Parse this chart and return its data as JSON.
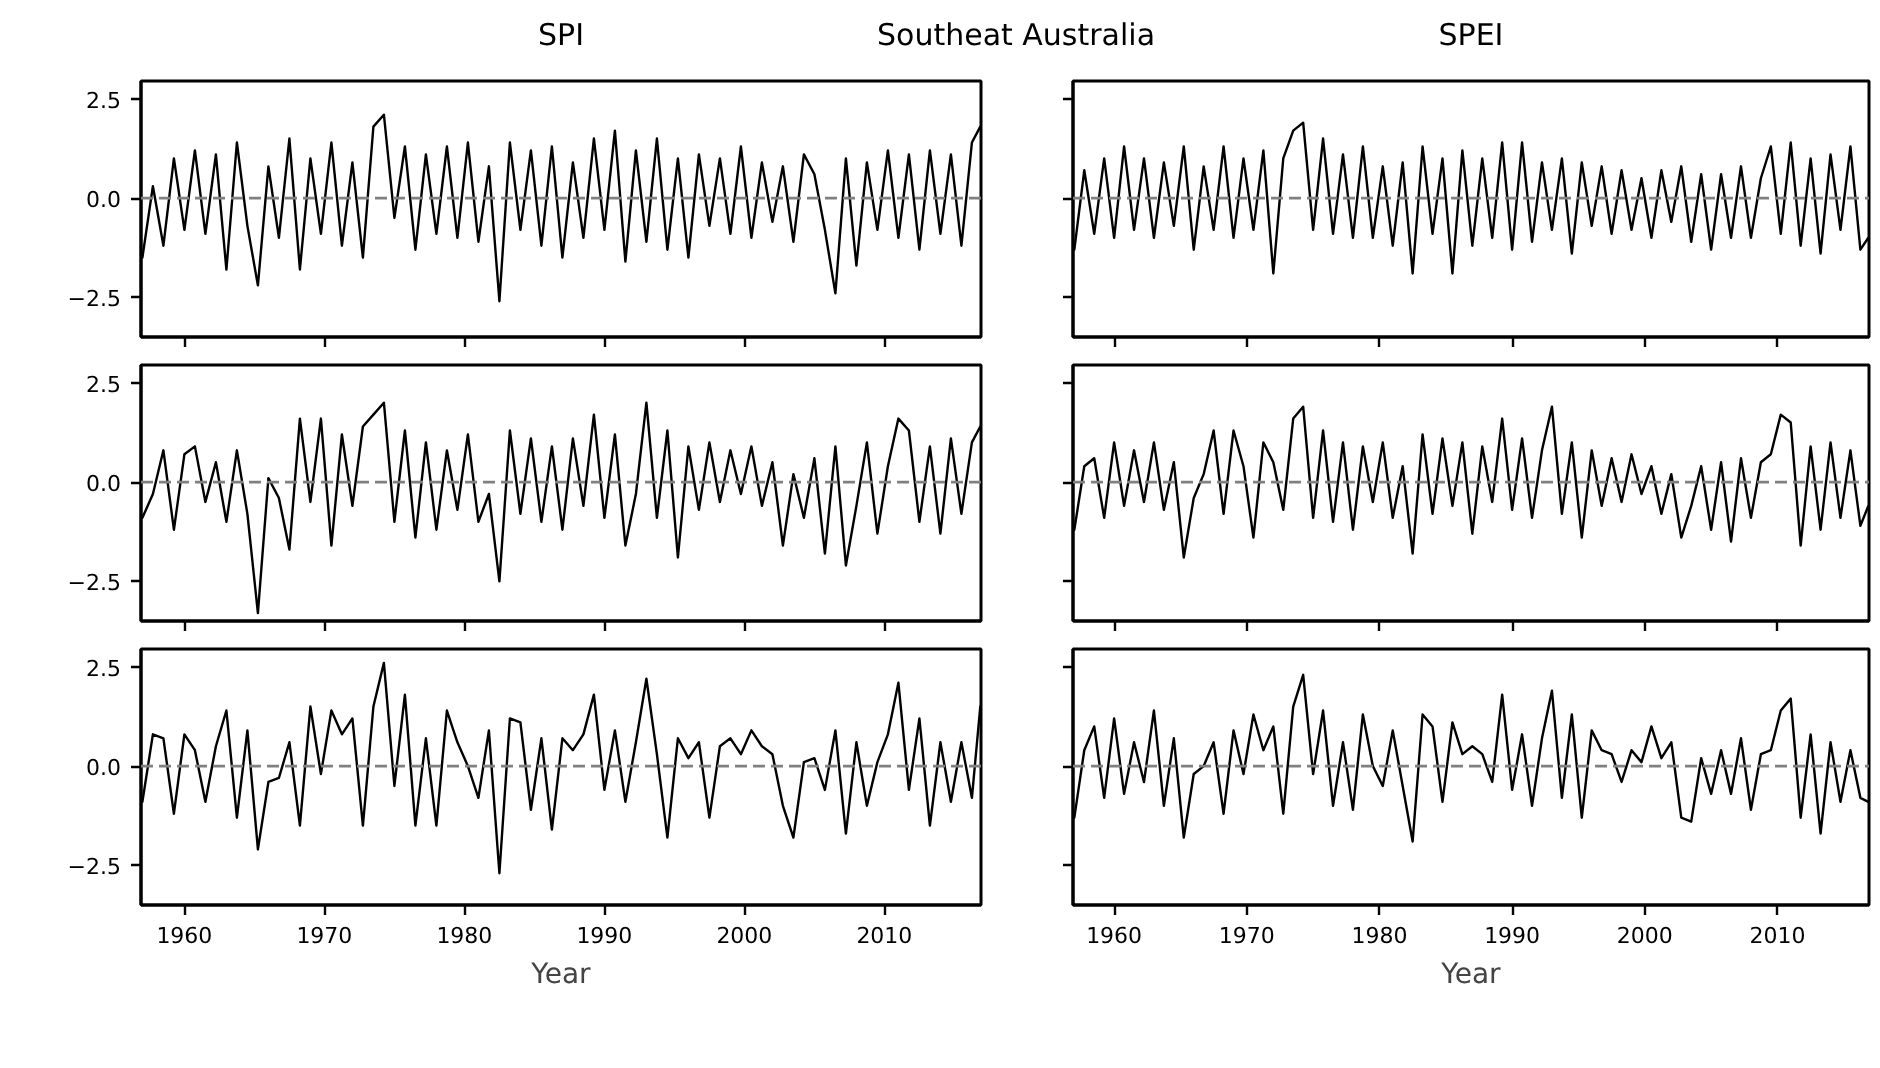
{
  "chart_data": [
    {
      "type": "line",
      "title": "SPI",
      "annotations": [
        "Southeat Australia"
      ],
      "tick_labels": "y",
      "xlim": [
        1956.9,
        2016.9
      ],
      "ylim": [
        -3.5,
        2.95
      ],
      "xticks": [
        1960,
        1970,
        1980,
        1990,
        2000,
        2010
      ],
      "yticks": [
        {
          "value": -2.5,
          "label": "−2.5"
        },
        {
          "value": 0,
          "label": "0.0"
        },
        {
          "value": 2.5,
          "label": "2.5"
        }
      ],
      "ref_lines": [
        {
          "axis": "y",
          "value": 0,
          "color": "#808080",
          "line_style": "dashed"
        }
      ],
      "x": [
        1957,
        1957.75,
        1958.5,
        1959.25,
        1960,
        1960.75,
        1961.5,
        1962.25,
        1963,
        1963.75,
        1964.5,
        1965.25,
        1966,
        1966.75,
        1967.5,
        1968.25,
        1969,
        1969.75,
        1970.5,
        1971.25,
        1972,
        1972.75,
        1973.5,
        1974.25,
        1975,
        1975.75,
        1976.5,
        1977.25,
        1978,
        1978.75,
        1979.5,
        1980.25,
        1981,
        1981.75,
        1982.5,
        1983.25,
        1984,
        1984.75,
        1985.5,
        1986.25,
        1987,
        1987.75,
        1988.5,
        1989.25,
        1990,
        1990.75,
        1991.5,
        1992.25,
        1993,
        1993.75,
        1994.5,
        1995.25,
        1996,
        1996.75,
        1997.5,
        1998.25,
        1999,
        1999.75,
        2000.5,
        2001.25,
        2002,
        2002.75,
        2003.5,
        2004.25,
        2005,
        2005.75,
        2006.5,
        2007.25,
        2008,
        2008.75,
        2009.5,
        2010.25,
        2011,
        2011.75,
        2012.5,
        2013.25,
        2014,
        2014.75,
        2015.5,
        2016.25,
        2016.85
      ],
      "series": [
        {
          "color": "#000000",
          "values": [
            -1.5,
            0.3,
            -1.2,
            1.0,
            -0.8,
            1.2,
            -0.9,
            1.1,
            -1.8,
            1.4,
            -0.7,
            -2.2,
            0.8,
            -1.0,
            1.5,
            -1.8,
            1.0,
            -0.9,
            1.4,
            -1.2,
            0.9,
            -1.5,
            1.8,
            2.1,
            -0.5,
            1.3,
            -1.3,
            1.1,
            -0.9,
            1.3,
            -1.0,
            1.4,
            -1.1,
            0.8,
            -2.6,
            1.4,
            -0.8,
            1.2,
            -1.2,
            1.3,
            -1.5,
            0.9,
            -1.0,
            1.5,
            -0.8,
            1.7,
            -1.6,
            1.2,
            -1.1,
            1.5,
            -1.3,
            1.0,
            -1.5,
            1.1,
            -0.7,
            1.0,
            -0.9,
            1.3,
            -1.0,
            0.9,
            -0.6,
            0.8,
            -1.1,
            1.1,
            0.6,
            -0.8,
            -2.4,
            1.0,
            -1.7,
            0.9,
            -0.8,
            1.2,
            -1.0,
            1.1,
            -1.3,
            1.2,
            -0.9,
            1.1,
            -1.2,
            1.4,
            1.8
          ]
        }
      ]
    },
    {
      "type": "line",
      "title": "SPEI",
      "tick_labels": false,
      "xlim": [
        1956.9,
        2016.9
      ],
      "ylim": [
        -3.5,
        2.95
      ],
      "xticks": [
        1960,
        1970,
        1980,
        1990,
        2000,
        2010
      ],
      "yticks": [
        {
          "value": -2.5,
          "label": null
        },
        {
          "value": 0,
          "label": null
        },
        {
          "value": 2.5,
          "label": null
        }
      ],
      "ref_lines": [
        {
          "axis": "y",
          "value": 0,
          "color": "#808080",
          "line_style": "dashed"
        }
      ],
      "x": [
        1957,
        1957.75,
        1958.5,
        1959.25,
        1960,
        1960.75,
        1961.5,
        1962.25,
        1963,
        1963.75,
        1964.5,
        1965.25,
        1966,
        1966.75,
        1967.5,
        1968.25,
        1969,
        1969.75,
        1970.5,
        1971.25,
        1972,
        1972.75,
        1973.5,
        1974.25,
        1975,
        1975.75,
        1976.5,
        1977.25,
        1978,
        1978.75,
        1979.5,
        1980.25,
        1981,
        1981.75,
        1982.5,
        1983.25,
        1984,
        1984.75,
        1985.5,
        1986.25,
        1987,
        1987.75,
        1988.5,
        1989.25,
        1990,
        1990.75,
        1991.5,
        1992.25,
        1993,
        1993.75,
        1994.5,
        1995.25,
        1996,
        1996.75,
        1997.5,
        1998.25,
        1999,
        1999.75,
        2000.5,
        2001.25,
        2002,
        2002.75,
        2003.5,
        2004.25,
        2005,
        2005.75,
        2006.5,
        2007.25,
        2008,
        2008.75,
        2009.5,
        2010.25,
        2011,
        2011.75,
        2012.5,
        2013.25,
        2014,
        2014.75,
        2015.5,
        2016.25,
        2016.85
      ],
      "series": [
        {
          "color": "#000000",
          "values": [
            -1.3,
            0.7,
            -0.9,
            1.0,
            -1.0,
            1.3,
            -0.8,
            1.0,
            -1.0,
            0.9,
            -0.7,
            1.3,
            -1.3,
            0.8,
            -0.8,
            1.3,
            -1.0,
            1.0,
            -0.8,
            1.2,
            -1.9,
            1.0,
            1.7,
            1.9,
            -0.8,
            1.5,
            -0.9,
            1.1,
            -1.0,
            1.3,
            -1.0,
            0.8,
            -1.2,
            0.9,
            -1.9,
            1.3,
            -0.9,
            1.0,
            -1.9,
            1.2,
            -1.2,
            1.0,
            -1.0,
            1.4,
            -1.3,
            1.4,
            -1.1,
            0.9,
            -0.8,
            1.0,
            -1.4,
            0.9,
            -0.7,
            0.8,
            -0.9,
            0.7,
            -0.8,
            0.5,
            -1.0,
            0.7,
            -0.6,
            0.8,
            -1.1,
            0.6,
            -1.3,
            0.6,
            -1.0,
            0.8,
            -1.0,
            0.5,
            1.3,
            -0.9,
            1.4,
            -1.2,
            1.0,
            -1.4,
            1.1,
            -0.8,
            1.3,
            -1.3,
            -1.0
          ]
        }
      ]
    },
    {
      "type": "line",
      "tick_labels": "y",
      "xlim": [
        1956.9,
        2016.9
      ],
      "ylim": [
        -3.5,
        2.95
      ],
      "xticks": [
        1960,
        1970,
        1980,
        1990,
        2000,
        2010
      ],
      "yticks": [
        {
          "value": -2.5,
          "label": "−2.5"
        },
        {
          "value": 0,
          "label": "0.0"
        },
        {
          "value": 2.5,
          "label": "2.5"
        }
      ],
      "ref_lines": [
        {
          "axis": "y",
          "value": 0,
          "color": "#808080",
          "line_style": "dashed"
        }
      ],
      "x": [
        1957,
        1957.75,
        1958.5,
        1959.25,
        1960,
        1960.75,
        1961.5,
        1962.25,
        1963,
        1963.75,
        1964.5,
        1965.25,
        1966,
        1966.75,
        1967.5,
        1968.25,
        1969,
        1969.75,
        1970.5,
        1971.25,
        1972,
        1972.75,
        1973.5,
        1974.25,
        1975,
        1975.75,
        1976.5,
        1977.25,
        1978,
        1978.75,
        1979.5,
        1980.25,
        1981,
        1981.75,
        1982.5,
        1983.25,
        1984,
        1984.75,
        1985.5,
        1986.25,
        1987,
        1987.75,
        1988.5,
        1989.25,
        1990,
        1990.75,
        1991.5,
        1992.25,
        1993,
        1993.75,
        1994.5,
        1995.25,
        1996,
        1996.75,
        1997.5,
        1998.25,
        1999,
        1999.75,
        2000.5,
        2001.25,
        2002,
        2002.75,
        2003.5,
        2004.25,
        2005,
        2005.75,
        2006.5,
        2007.25,
        2008,
        2008.75,
        2009.5,
        2010.25,
        2011,
        2011.75,
        2012.5,
        2013.25,
        2014,
        2014.75,
        2015.5,
        2016.25,
        2016.85
      ],
      "series": [
        {
          "color": "#000000",
          "values": [
            -0.9,
            -0.3,
            0.8,
            -1.2,
            0.7,
            0.9,
            -0.5,
            0.5,
            -1.0,
            0.8,
            -0.8,
            -3.3,
            0.1,
            -0.4,
            -1.7,
            1.6,
            -0.5,
            1.6,
            -1.6,
            1.2,
            -0.6,
            1.4,
            1.7,
            2.0,
            -1.0,
            1.3,
            -1.4,
            1.0,
            -1.2,
            0.8,
            -0.7,
            1.2,
            -1.0,
            -0.3,
            -2.5,
            1.3,
            -0.8,
            1.1,
            -1.0,
            0.9,
            -1.2,
            1.1,
            -0.6,
            1.7,
            -0.9,
            1.2,
            -1.6,
            -0.3,
            2.0,
            -0.9,
            1.3,
            -1.9,
            0.9,
            -0.7,
            1.0,
            -0.5,
            0.8,
            -0.3,
            0.9,
            -0.6,
            0.5,
            -1.6,
            0.2,
            -0.9,
            0.6,
            -1.8,
            0.9,
            -2.1,
            -0.6,
            1.0,
            -1.3,
            0.4,
            1.6,
            1.3,
            -1.0,
            0.9,
            -1.3,
            1.1,
            -0.8,
            1.0,
            1.4
          ]
        }
      ]
    },
    {
      "type": "line",
      "tick_labels": false,
      "xlim": [
        1956.9,
        2016.9
      ],
      "ylim": [
        -3.5,
        2.95
      ],
      "xticks": [
        1960,
        1970,
        1980,
        1990,
        2000,
        2010
      ],
      "yticks": [
        {
          "value": -2.5,
          "label": null
        },
        {
          "value": 0,
          "label": null
        },
        {
          "value": 2.5,
          "label": null
        }
      ],
      "ref_lines": [
        {
          "axis": "y",
          "value": 0,
          "color": "#808080",
          "line_style": "dashed"
        }
      ],
      "x": [
        1957,
        1957.75,
        1958.5,
        1959.25,
        1960,
        1960.75,
        1961.5,
        1962.25,
        1963,
        1963.75,
        1964.5,
        1965.25,
        1966,
        1966.75,
        1967.5,
        1968.25,
        1969,
        1969.75,
        1970.5,
        1971.25,
        1972,
        1972.75,
        1973.5,
        1974.25,
        1975,
        1975.75,
        1976.5,
        1977.25,
        1978,
        1978.75,
        1979.5,
        1980.25,
        1981,
        1981.75,
        1982.5,
        1983.25,
        1984,
        1984.75,
        1985.5,
        1986.25,
        1987,
        1987.75,
        1988.5,
        1989.25,
        1990,
        1990.75,
        1991.5,
        1992.25,
        1993,
        1993.75,
        1994.5,
        1995.25,
        1996,
        1996.75,
        1997.5,
        1998.25,
        1999,
        1999.75,
        2000.5,
        2001.25,
        2002,
        2002.75,
        2003.5,
        2004.25,
        2005,
        2005.75,
        2006.5,
        2007.25,
        2008,
        2008.75,
        2009.5,
        2010.25,
        2011,
        2011.75,
        2012.5,
        2013.25,
        2014,
        2014.75,
        2015.5,
        2016.25,
        2016.85
      ],
      "series": [
        {
          "color": "#000000",
          "values": [
            -1.2,
            0.4,
            0.6,
            -0.9,
            1.0,
            -0.6,
            0.8,
            -0.5,
            1.0,
            -0.7,
            0.5,
            -1.9,
            -0.4,
            0.2,
            1.3,
            -0.8,
            1.3,
            0.4,
            -1.4,
            1.0,
            0.5,
            -0.7,
            1.6,
            1.9,
            -0.9,
            1.3,
            -1.0,
            1.0,
            -1.2,
            0.9,
            -0.5,
            1.0,
            -0.9,
            0.4,
            -1.8,
            1.2,
            -0.8,
            1.1,
            -0.6,
            1.0,
            -1.3,
            0.9,
            -0.5,
            1.6,
            -0.7,
            1.1,
            -0.9,
            0.8,
            1.9,
            -0.8,
            1.0,
            -1.4,
            0.8,
            -0.6,
            0.6,
            -0.5,
            0.7,
            -0.3,
            0.4,
            -0.8,
            0.2,
            -1.4,
            -0.6,
            0.4,
            -1.2,
            0.5,
            -1.5,
            0.6,
            -0.9,
            0.5,
            0.7,
            1.7,
            1.5,
            -1.6,
            0.9,
            -1.2,
            1.0,
            -0.9,
            0.8,
            -1.1,
            -0.6
          ]
        }
      ]
    },
    {
      "type": "line",
      "xlabel": "Year",
      "xlim": [
        1956.9,
        2016.9
      ],
      "ylim": [
        -3.5,
        2.95
      ],
      "xticks": [
        1960,
        1970,
        1980,
        1990,
        2000,
        2010
      ],
      "yticks": [
        {
          "value": -2.5,
          "label": "−2.5"
        },
        {
          "value": 0,
          "label": "0.0"
        },
        {
          "value": 2.5,
          "label": "2.5"
        }
      ],
      "ref_lines": [
        {
          "axis": "y",
          "value": 0,
          "color": "#808080",
          "line_style": "dashed"
        }
      ],
      "x": [
        1957,
        1957.75,
        1958.5,
        1959.25,
        1960,
        1960.75,
        1961.5,
        1962.25,
        1963,
        1963.75,
        1964.5,
        1965.25,
        1966,
        1966.75,
        1967.5,
        1968.25,
        1969,
        1969.75,
        1970.5,
        1971.25,
        1972,
        1972.75,
        1973.5,
        1974.25,
        1975,
        1975.75,
        1976.5,
        1977.25,
        1978,
        1978.75,
        1979.5,
        1980.25,
        1981,
        1981.75,
        1982.5,
        1983.25,
        1984,
        1984.75,
        1985.5,
        1986.25,
        1987,
        1987.75,
        1988.5,
        1989.25,
        1990,
        1990.75,
        1991.5,
        1992.25,
        1993,
        1993.75,
        1994.5,
        1995.25,
        1996,
        1996.75,
        1997.5,
        1998.25,
        1999,
        1999.75,
        2000.5,
        2001.25,
        2002,
        2002.75,
        2003.5,
        2004.25,
        2005,
        2005.75,
        2006.5,
        2007.25,
        2008,
        2008.75,
        2009.5,
        2010.25,
        2011,
        2011.75,
        2012.5,
        2013.25,
        2014,
        2014.75,
        2015.5,
        2016.25,
        2016.85
      ],
      "series": [
        {
          "color": "#000000",
          "values": [
            -0.9,
            0.8,
            0.7,
            -1.2,
            0.8,
            0.4,
            -0.9,
            0.5,
            1.4,
            -1.3,
            0.9,
            -2.1,
            -0.4,
            -0.3,
            0.6,
            -1.5,
            1.5,
            -0.2,
            1.4,
            0.8,
            1.2,
            -1.5,
            1.5,
            2.6,
            -0.5,
            1.8,
            -1.5,
            0.7,
            -1.5,
            1.4,
            0.6,
            0.0,
            -0.8,
            0.9,
            -2.7,
            1.2,
            1.1,
            -1.1,
            0.7,
            -1.6,
            0.7,
            0.4,
            0.8,
            1.8,
            -0.6,
            0.9,
            -0.9,
            0.6,
            2.2,
            0.3,
            -1.8,
            0.7,
            0.2,
            0.6,
            -1.3,
            0.5,
            0.7,
            0.3,
            0.9,
            0.5,
            0.3,
            -1.0,
            -1.8,
            0.1,
            0.2,
            -0.6,
            0.9,
            -1.7,
            0.6,
            -1.0,
            0.1,
            0.8,
            2.1,
            -0.6,
            1.2,
            -1.5,
            0.6,
            -0.9,
            0.6,
            -0.8,
            1.5
          ]
        }
      ]
    },
    {
      "type": "line",
      "xlabel": "Year",
      "tick_labels": "x",
      "xlim": [
        1956.9,
        2016.9
      ],
      "ylim": [
        -3.5,
        2.95
      ],
      "xticks": [
        1960,
        1970,
        1980,
        1990,
        2000,
        2010
      ],
      "yticks": [
        {
          "value": -2.5,
          "label": null
        },
        {
          "value": 0,
          "label": null
        },
        {
          "value": 2.5,
          "label": null
        }
      ],
      "ref_lines": [
        {
          "axis": "y",
          "value": 0,
          "color": "#808080",
          "line_style": "dashed"
        }
      ],
      "x": [
        1957,
        1957.75,
        1958.5,
        1959.25,
        1960,
        1960.75,
        1961.5,
        1962.25,
        1963,
        1963.75,
        1964.5,
        1965.25,
        1966,
        1966.75,
        1967.5,
        1968.25,
        1969,
        1969.75,
        1970.5,
        1971.25,
        1972,
        1972.75,
        1973.5,
        1974.25,
        1975,
        1975.75,
        1976.5,
        1977.25,
        1978,
        1978.75,
        1979.5,
        1980.25,
        1981,
        1981.75,
        1982.5,
        1983.25,
        1984,
        1984.75,
        1985.5,
        1986.25,
        1987,
        1987.75,
        1988.5,
        1989.25,
        1990,
        1990.75,
        1991.5,
        1992.25,
        1993,
        1993.75,
        1994.5,
        1995.25,
        1996,
        1996.75,
        1997.5,
        1998.25,
        1999,
        1999.75,
        2000.5,
        2001.25,
        2002,
        2002.75,
        2003.5,
        2004.25,
        2005,
        2005.75,
        2006.5,
        2007.25,
        2008,
        2008.75,
        2009.5,
        2010.25,
        2011,
        2011.75,
        2012.5,
        2013.25,
        2014,
        2014.75,
        2015.5,
        2016.25,
        2016.85
      ],
      "series": [
        {
          "color": "#000000",
          "values": [
            -1.3,
            0.4,
            1.0,
            -0.8,
            1.2,
            -0.7,
            0.6,
            -0.4,
            1.4,
            -1.0,
            0.7,
            -1.8,
            -0.2,
            0.0,
            0.6,
            -1.2,
            0.9,
            -0.2,
            1.3,
            0.4,
            1.0,
            -1.2,
            1.5,
            2.3,
            -0.2,
            1.4,
            -1.0,
            0.6,
            -1.1,
            1.3,
            0.0,
            -0.5,
            0.9,
            -0.5,
            -1.9,
            1.3,
            1.0,
            -0.9,
            1.1,
            0.3,
            0.5,
            0.3,
            -0.4,
            1.8,
            -0.6,
            0.8,
            -1.0,
            0.7,
            1.9,
            -0.8,
            1.3,
            -1.3,
            0.9,
            0.4,
            0.3,
            -0.4,
            0.4,
            0.1,
            1.0,
            0.2,
            0.6,
            -1.3,
            -1.4,
            0.2,
            -0.7,
            0.4,
            -0.7,
            0.7,
            -1.1,
            0.3,
            0.4,
            1.4,
            1.7,
            -1.3,
            0.8,
            -1.7,
            0.6,
            -0.9,
            0.4,
            -0.8,
            -0.9
          ]
        }
      ]
    }
  ]
}
